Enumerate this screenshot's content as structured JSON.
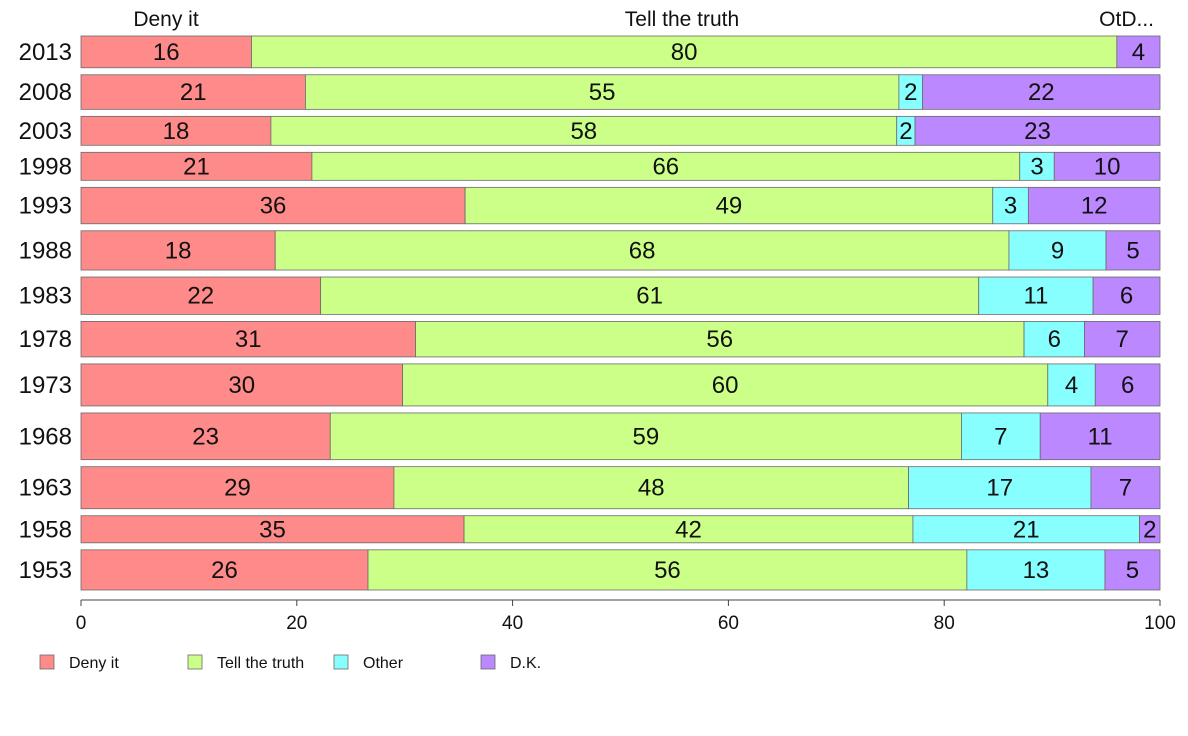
{
  "chart_data": {
    "type": "bar",
    "orientation": "horizontal",
    "stacked": true,
    "categories": [
      "2013",
      "2008",
      "2003",
      "1998",
      "1993",
      "1988",
      "1983",
      "1978",
      "1973",
      "1968",
      "1963",
      "1958",
      "1953"
    ],
    "row_weights": [
      0.68,
      0.74,
      0.62,
      0.6,
      0.78,
      0.84,
      0.8,
      0.76,
      0.9,
      1.0,
      0.9,
      0.58,
      0.86
    ],
    "series": [
      {
        "name": "Deny it",
        "color": "#FF8A8A",
        "values": [
          16,
          21,
          18,
          21,
          36,
          18,
          22,
          31,
          30,
          23,
          29,
          35,
          26
        ],
        "share": [
          15.8,
          20.8,
          17.6,
          21.4,
          35.6,
          18.0,
          22.2,
          31.0,
          29.8,
          23.1,
          29.0,
          35.5,
          26.6
        ]
      },
      {
        "name": "Tell the truth",
        "color": "#CCFF88",
        "values": [
          80,
          55,
          58,
          66,
          49,
          68,
          61,
          56,
          60,
          59,
          48,
          42,
          56
        ],
        "share": [
          80.2,
          55.0,
          58.0,
          65.6,
          48.9,
          68.0,
          61.0,
          56.4,
          59.8,
          58.5,
          47.7,
          41.6,
          55.5
        ]
      },
      {
        "name": "Other",
        "color": "#88FFFF",
        "values": [
          0,
          2,
          2,
          3,
          3,
          9,
          11,
          6,
          4,
          7,
          17,
          21,
          13
        ],
        "share": [
          0.0,
          2.2,
          1.7,
          3.2,
          3.3,
          9.0,
          10.6,
          5.6,
          4.4,
          7.3,
          16.9,
          21.0,
          12.8
        ]
      },
      {
        "name": "D.K.",
        "color": "#BB88FF",
        "values": [
          4,
          22,
          23,
          10,
          12,
          5,
          6,
          7,
          6,
          11,
          7,
          2,
          5
        ],
        "share": [
          4.0,
          22.0,
          22.7,
          9.8,
          12.2,
          5.0,
          6.2,
          7.0,
          6.0,
          11.1,
          6.4,
          1.9,
          5.1
        ]
      }
    ],
    "header_labels": [
      "Deny it",
      "Tell the truth",
      "OtD..."
    ],
    "xlim": [
      0,
      100
    ],
    "xticks": [
      0,
      20,
      40,
      60,
      80,
      100
    ],
    "xtick_labels": [
      "0",
      "20",
      "40",
      "60",
      "80",
      "100"
    ],
    "xlabel": "",
    "ylabel": "",
    "title": "",
    "grid": false,
    "legend_position": "bottom-left"
  }
}
